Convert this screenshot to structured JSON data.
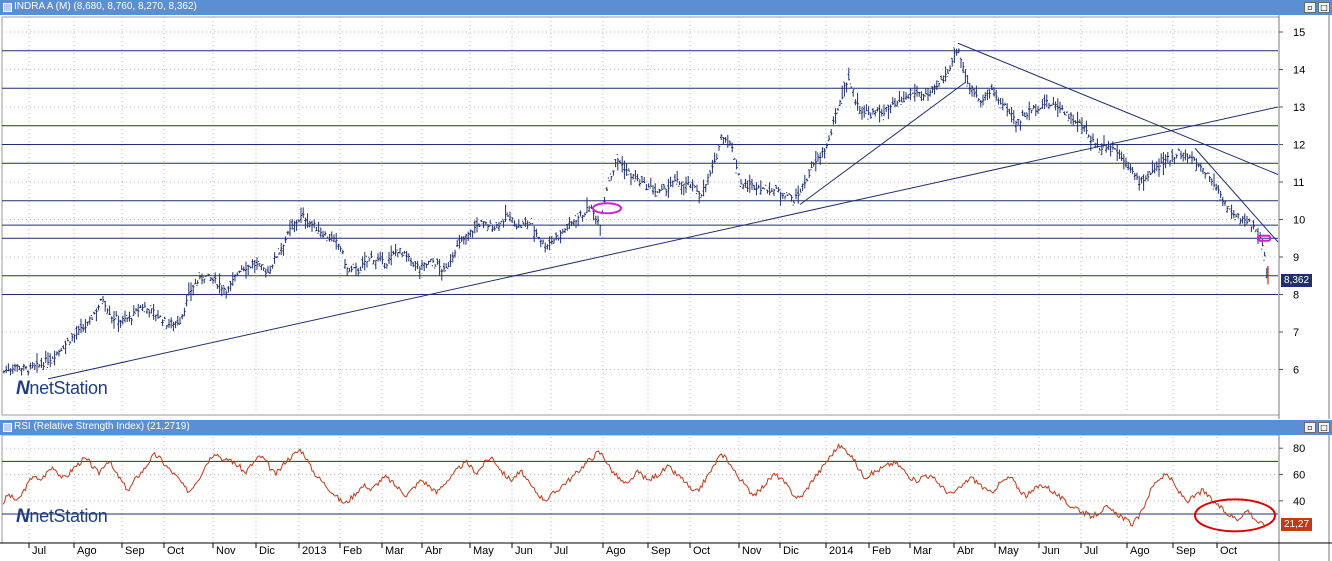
{
  "price_panel": {
    "title": "INDRA A (M) (8,680, 8,760, 8,270, 8,362)",
    "last_label": "8,362",
    "last_color": "#1f2f6e",
    "watermark_n": "N",
    "watermark_text": "netStation"
  },
  "rsi_panel": {
    "title": "RSI (Relative Strength Index) (21,2719)",
    "last_label": "21,27",
    "last_color": "#c0391a",
    "watermark_n": "N",
    "watermark_text": "netStation"
  },
  "buttons": {
    "minimize": "▫",
    "maximize": "□"
  },
  "x_axis": {
    "labels": [
      "Jul",
      "Ago",
      "Sep",
      "Oct",
      "Nov",
      "Dic",
      "2013",
      "Feb",
      "Mar",
      "Abr",
      "May",
      "Jun",
      "Jul",
      "Ago",
      "Sep",
      "Oct",
      "Nov",
      "Dic",
      "2014",
      "Feb",
      "Mar",
      "Abr",
      "May",
      "Jun",
      "Jul",
      "Ago",
      "Sep",
      "Oct"
    ]
  },
  "chart_data": [
    {
      "type": "ohlc",
      "title": "INDRA A (M) (8,680, 8,760, 8,270, 8,362)",
      "y_ticks": [
        6,
        7,
        8,
        9,
        10,
        11,
        12,
        13,
        14,
        15
      ],
      "ylim": [
        5.0,
        15.4
      ],
      "last_price": 8.362,
      "colors": {
        "up": "#1f2f6e",
        "horizontal_lines": "#1f2f6e",
        "trendlines": "#1f2f6e",
        "highlight": "#d020d0"
      },
      "horizontal_levels": [
        8.0,
        8.5,
        9.5,
        9.85,
        10.5,
        11.5,
        12.0,
        12.5,
        13.5,
        14.5
      ],
      "price_path": [
        [
          0,
          5.9
        ],
        [
          15,
          6.1
        ],
        [
          28,
          6.0
        ],
        [
          40,
          6.1
        ],
        [
          55,
          6.4
        ],
        [
          70,
          6.8
        ],
        [
          88,
          7.2
        ],
        [
          103,
          7.9
        ],
        [
          112,
          7.4
        ],
        [
          122,
          7.3
        ],
        [
          132,
          7.4
        ],
        [
          142,
          7.7
        ],
        [
          155,
          7.5
        ],
        [
          168,
          7.2
        ],
        [
          180,
          7.3
        ],
        [
          192,
          8.2
        ],
        [
          205,
          8.5
        ],
        [
          218,
          8.3
        ],
        [
          228,
          8.1
        ],
        [
          240,
          8.7
        ],
        [
          255,
          8.8
        ],
        [
          268,
          8.6
        ],
        [
          280,
          9.2
        ],
        [
          292,
          9.8
        ],
        [
          302,
          10.1
        ],
        [
          315,
          9.8
        ],
        [
          330,
          9.5
        ],
        [
          340,
          9.3
        ],
        [
          348,
          8.6
        ],
        [
          360,
          8.7
        ],
        [
          372,
          9.0
        ],
        [
          385,
          8.8
        ],
        [
          398,
          9.2
        ],
        [
          410,
          8.9
        ],
        [
          420,
          8.7
        ],
        [
          432,
          8.9
        ],
        [
          445,
          8.6
        ],
        [
          455,
          9.2
        ],
        [
          468,
          9.6
        ],
        [
          480,
          9.9
        ],
        [
          495,
          9.8
        ],
        [
          508,
          10.1
        ],
        [
          518,
          9.8
        ],
        [
          530,
          9.9
        ],
        [
          545,
          9.3
        ],
        [
          560,
          9.6
        ],
        [
          575,
          10.0
        ],
        [
          590,
          10.3
        ],
        [
          600,
          9.9
        ],
        [
          608,
          11.0
        ],
        [
          618,
          11.6
        ],
        [
          630,
          11.2
        ],
        [
          645,
          10.9
        ],
        [
          660,
          10.7
        ],
        [
          675,
          11.0
        ],
        [
          690,
          10.9
        ],
        [
          702,
          10.7
        ],
        [
          715,
          11.5
        ],
        [
          722,
          12.3
        ],
        [
          732,
          11.9
        ],
        [
          742,
          10.9
        ],
        [
          755,
          10.9
        ],
        [
          770,
          10.8
        ],
        [
          785,
          10.7
        ],
        [
          795,
          10.5
        ],
        [
          805,
          11.0
        ],
        [
          815,
          11.5
        ],
        [
          828,
          12.0
        ],
        [
          838,
          13.0
        ],
        [
          848,
          13.8
        ],
        [
          858,
          13.0
        ],
        [
          870,
          12.8
        ],
        [
          885,
          12.9
        ],
        [
          900,
          13.1
        ],
        [
          915,
          13.4
        ],
        [
          930,
          13.3
        ],
        [
          945,
          13.8
        ],
        [
          958,
          14.6
        ],
        [
          968,
          13.6
        ],
        [
          980,
          13.2
        ],
        [
          992,
          13.4
        ],
        [
          1005,
          13.0
        ],
        [
          1018,
          12.6
        ],
        [
          1030,
          12.9
        ],
        [
          1045,
          13.1
        ],
        [
          1060,
          13.0
        ],
        [
          1072,
          12.7
        ],
        [
          1085,
          12.4
        ],
        [
          1098,
          11.9
        ],
        [
          1110,
          12.0
        ],
        [
          1125,
          11.6
        ],
        [
          1138,
          11.0
        ],
        [
          1150,
          11.2
        ],
        [
          1163,
          11.5
        ],
        [
          1178,
          11.8
        ],
        [
          1192,
          11.6
        ],
        [
          1205,
          11.3
        ],
        [
          1218,
          10.8
        ],
        [
          1232,
          10.1
        ],
        [
          1245,
          10.0
        ],
        [
          1255,
          9.8
        ],
        [
          1263,
          9.3
        ],
        [
          1268,
          8.36
        ]
      ],
      "trendlines": [
        [
          [
            48,
            5.75
          ],
          [
            1278,
            13.0
          ]
        ],
        [
          [
            800,
            10.4
          ],
          [
            965,
            13.65
          ]
        ],
        [
          [
            958,
            14.7
          ],
          [
            1278,
            11.2
          ]
        ],
        [
          [
            1195,
            11.9
          ],
          [
            1278,
            9.4
          ]
        ]
      ],
      "highlights": [
        [
          607,
          10.3
        ],
        [
          1264,
          9.5
        ]
      ]
    },
    {
      "type": "line",
      "title": "RSI (Relative Strength Index) (21,2719)",
      "y_ticks": [
        40,
        60,
        80
      ],
      "ylim": [
        11,
        87
      ],
      "reference_levels": [
        30,
        70
      ],
      "last_value": 21.27,
      "colors": {
        "line": "#c0391a",
        "levels": "#1f2f6e",
        "circle": "#dd0000"
      },
      "values": [
        38,
        45,
        42,
        40,
        47,
        53,
        60,
        55,
        58,
        63,
        66,
        61,
        57,
        60,
        65,
        68,
        72,
        70,
        65,
        61,
        67,
        71,
        63,
        58,
        52,
        48,
        55,
        60,
        64,
        70,
        75,
        73,
        68,
        64,
        60,
        56,
        50,
        47,
        53,
        58,
        66,
        72,
        77,
        74,
        70,
        72,
        68,
        66,
        61,
        66,
        70,
        74,
        71,
        65,
        60,
        64,
        70,
        73,
        76,
        79,
        74,
        66,
        60,
        56,
        52,
        48,
        44,
        40,
        38,
        42,
        46,
        50,
        52,
        48,
        52,
        56,
        58,
        55,
        51,
        48,
        44,
        48,
        52,
        56,
        53,
        50,
        46,
        51,
        55,
        58,
        63,
        67,
        69,
        65,
        61,
        66,
        71,
        73,
        68,
        62,
        58,
        56,
        60,
        62,
        55,
        50,
        46,
        42,
        41,
        45,
        48,
        52,
        55,
        58,
        62,
        66,
        70,
        73,
        77,
        75,
        68,
        62,
        58,
        54,
        52,
        58,
        62,
        59,
        55,
        58,
        60,
        63,
        66,
        62,
        59,
        56,
        51,
        46,
        48,
        54,
        60,
        66,
        73,
        75,
        70,
        63,
        58,
        53,
        48,
        45,
        47,
        52,
        56,
        60,
        58,
        54,
        49,
        44,
        42,
        46,
        52,
        58,
        62,
        68,
        73,
        78,
        82,
        79,
        76,
        70,
        63,
        58,
        60,
        62,
        64,
        66,
        68,
        69,
        66,
        62,
        58,
        55,
        57,
        60,
        58,
        56,
        52,
        48,
        45,
        47,
        50,
        54,
        58,
        55,
        52,
        48,
        46,
        50,
        54,
        56,
        58,
        52,
        47,
        44,
        46,
        50,
        52,
        51,
        48,
        45,
        42,
        38,
        36,
        35,
        32,
        30,
        28,
        30,
        33,
        35,
        32,
        30,
        28,
        25,
        22,
        26,
        32,
        42,
        50,
        56,
        58,
        60,
        55,
        48,
        44,
        40,
        42,
        45,
        48,
        44,
        40,
        37,
        33,
        30,
        28,
        26,
        30,
        33,
        28,
        24,
        22,
        21.27
      ]
    }
  ]
}
